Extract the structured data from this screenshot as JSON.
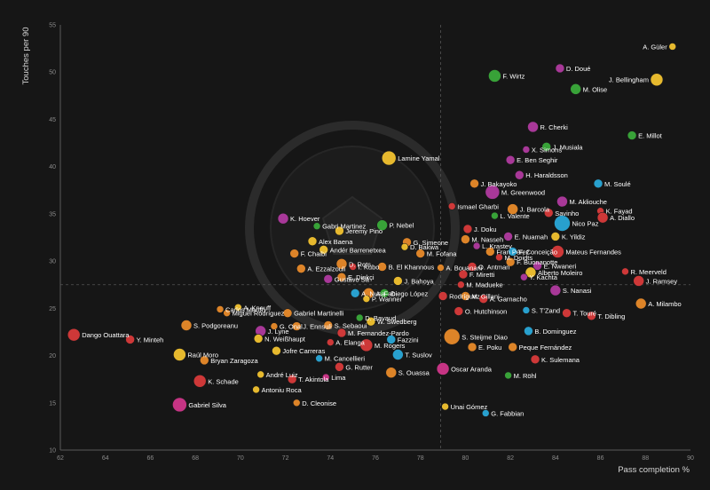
{
  "chart_data": {
    "type": "scatter",
    "title": "",
    "xlabel": "Pass completion %",
    "ylabel": "Touches per 90",
    "xlim": [
      62,
      90
    ],
    "ylim": [
      10,
      55
    ],
    "xticks": [
      62,
      64,
      66,
      68,
      70,
      72,
      74,
      76,
      78,
      80,
      82,
      84,
      86,
      88,
      90
    ],
    "yticks": [
      10,
      15,
      20,
      25,
      30,
      35,
      40,
      45,
      50,
      55
    ],
    "reference_lines": {
      "x": 78.9,
      "y": 27.5
    },
    "grid": false,
    "legend": "none",
    "points": [
      {
        "label": "A. Güler",
        "x": 89.2,
        "y": 52.7,
        "color": "#f2c230",
        "r": 4
      },
      {
        "label": "D. Doué",
        "x": 84.2,
        "y": 50.4,
        "color": "#b03aa0",
        "r": 5
      },
      {
        "label": "F. Wirtz",
        "x": 81.3,
        "y": 49.6,
        "color": "#3aaa3a",
        "r": 7
      },
      {
        "label": "J. Bellingham",
        "x": 88.5,
        "y": 49.2,
        "color": "#f2c230",
        "r": 7
      },
      {
        "label": "M. Olise",
        "x": 84.9,
        "y": 48.2,
        "color": "#3aaa3a",
        "r": 6
      },
      {
        "label": "R. Cherki",
        "x": 83.0,
        "y": 44.2,
        "color": "#b03aa0",
        "r": 6
      },
      {
        "label": "E. Millot",
        "x": 87.4,
        "y": 43.3,
        "color": "#3aaa3a",
        "r": 5
      },
      {
        "label": "J. Musiala",
        "x": 83.6,
        "y": 42.1,
        "color": "#3aaa3a",
        "r": 5
      },
      {
        "label": "X. Simons",
        "x": 82.7,
        "y": 41.8,
        "color": "#b03aa0",
        "r": 4
      },
      {
        "label": "E. Ben Seghir",
        "x": 82.0,
        "y": 40.7,
        "color": "#b03aa0",
        "r": 5
      },
      {
        "label": "Lamine Yamal",
        "x": 76.6,
        "y": 40.9,
        "color": "#f2c230",
        "r": 8
      },
      {
        "label": "H. Haraldsson",
        "x": 82.4,
        "y": 39.1,
        "color": "#b03aa0",
        "r": 5
      },
      {
        "label": "J. Bakayoko",
        "x": 80.4,
        "y": 38.2,
        "color": "#e88a2a",
        "r": 5
      },
      {
        "label": "M. Soulé",
        "x": 85.9,
        "y": 38.2,
        "color": "#2aa8d8",
        "r": 5
      },
      {
        "label": "M. Greenwood",
        "x": 81.2,
        "y": 37.3,
        "color": "#b03aa0",
        "r": 8
      },
      {
        "label": "M. Akliouche",
        "x": 84.3,
        "y": 36.3,
        "color": "#b03aa0",
        "r": 6
      },
      {
        "label": "Ismael Gharbi",
        "x": 79.4,
        "y": 35.8,
        "color": "#d83a3a",
        "r": 4
      },
      {
        "label": "J. Barcola",
        "x": 82.1,
        "y": 35.5,
        "color": "#e88a2a",
        "r": 6
      },
      {
        "label": "K. Fayad",
        "x": 86.0,
        "y": 35.3,
        "color": "#d83a3a",
        "r": 4
      },
      {
        "label": "Savinho",
        "x": 83.7,
        "y": 35.1,
        "color": "#d83a3a",
        "r": 5
      },
      {
        "label": "L. Valente",
        "x": 81.3,
        "y": 34.8,
        "color": "#3aaa3a",
        "r": 4
      },
      {
        "label": "A. Diallo",
        "x": 86.1,
        "y": 34.6,
        "color": "#d83a3a",
        "r": 6
      },
      {
        "label": "K. Hoever",
        "x": 71.9,
        "y": 34.5,
        "color": "#b03aa0",
        "r": 6
      },
      {
        "label": "Nico Paz",
        "x": 84.3,
        "y": 34.0,
        "color": "#2aa8d8",
        "r": 9
      },
      {
        "label": "Gabri Martinez",
        "x": 73.4,
        "y": 33.7,
        "color": "#3aaa3a",
        "r": 4
      },
      {
        "label": "P. Nebel",
        "x": 76.3,
        "y": 33.8,
        "color": "#3aaa3a",
        "r": 6
      },
      {
        "label": "J. Doku",
        "x": 80.1,
        "y": 33.4,
        "color": "#d83a3a",
        "r": 5
      },
      {
        "label": "Jeremy Pino",
        "x": 74.4,
        "y": 33.2,
        "color": "#f2c230",
        "r": 5
      },
      {
        "label": "E. Nuamah",
        "x": 81.9,
        "y": 32.6,
        "color": "#b03aa0",
        "r": 5
      },
      {
        "label": "K. Yildiz",
        "x": 84.0,
        "y": 32.6,
        "color": "#f2c230",
        "r": 5
      },
      {
        "label": "M. Nasseh",
        "x": 80.0,
        "y": 32.3,
        "color": "#e88a2a",
        "r": 5
      },
      {
        "label": "Alex Baena",
        "x": 73.2,
        "y": 32.1,
        "color": "#f2c230",
        "r": 5
      },
      {
        "label": "G. Simeone",
        "x": 77.4,
        "y": 32.0,
        "color": "#e88a2a",
        "r": 5
      },
      {
        "label": "D. Bakwa",
        "x": 77.3,
        "y": 31.5,
        "color": "#f2c230",
        "r": 4
      },
      {
        "label": "L. Krastev",
        "x": 80.5,
        "y": 31.6,
        "color": "#b03aa0",
        "r": 4
      },
      {
        "label": "Andér Barrenetxea",
        "x": 73.7,
        "y": 31.2,
        "color": "#f2c230",
        "r": 5
      },
      {
        "label": "Fran Pérez",
        "x": 81.1,
        "y": 31.0,
        "color": "#e88a2a",
        "r": 5
      },
      {
        "label": "F. Conceição",
        "x": 82.1,
        "y": 31.0,
        "color": "#2aa8d8",
        "r": 5
      },
      {
        "label": "Mateus Fernandes",
        "x": 84.1,
        "y": 31.0,
        "color": "#d83a3a",
        "r": 7
      },
      {
        "label": "F. Chaibi",
        "x": 72.4,
        "y": 30.8,
        "color": "#e88a2a",
        "r": 5
      },
      {
        "label": "M. Fofana",
        "x": 78.0,
        "y": 30.8,
        "color": "#e88a2a",
        "r": 5
      },
      {
        "label": "M. Doidts",
        "x": 81.5,
        "y": 30.4,
        "color": "#d83a3a",
        "r": 4
      },
      {
        "label": "F. Buonanotte",
        "x": 82.0,
        "y": 29.9,
        "color": "#e88a2a",
        "r": 5
      },
      {
        "label": "D. Rots",
        "x": 74.5,
        "y": 29.7,
        "color": "#e88a2a",
        "r": 6
      },
      {
        "label": "I. Kubo",
        "x": 75.0,
        "y": 29.4,
        "color": "#d83a3a",
        "r": 4
      },
      {
        "label": "B. El Khannous",
        "x": 76.3,
        "y": 29.4,
        "color": "#e88a2a",
        "r": 5
      },
      {
        "label": "A. Bouanani",
        "x": 78.9,
        "y": 29.3,
        "color": "#e88a2a",
        "r": 4
      },
      {
        "label": "O. Antman",
        "x": 80.3,
        "y": 29.4,
        "color": "#d83a3a",
        "r": 5
      },
      {
        "label": "E. Nwaneri",
        "x": 83.2,
        "y": 29.5,
        "color": "#b03aa0",
        "r": 5
      },
      {
        "label": "A. Ezzalzouli",
        "x": 72.7,
        "y": 29.2,
        "color": "#e88a2a",
        "r": 5
      },
      {
        "label": "Alberto Moleiro",
        "x": 82.9,
        "y": 28.8,
        "color": "#f2c230",
        "r": 6
      },
      {
        "label": "R. Meerveld",
        "x": 87.1,
        "y": 28.9,
        "color": "#d83a3a",
        "r": 4
      },
      {
        "label": "F. Miretti",
        "x": 79.9,
        "y": 28.6,
        "color": "#d83a3a",
        "r": 5
      },
      {
        "label": "Y. Kachta",
        "x": 82.6,
        "y": 28.3,
        "color": "#b03aa0",
        "r": 4
      },
      {
        "label": "E. Dinkçi",
        "x": 74.5,
        "y": 28.3,
        "color": "#e88a2a",
        "r": 5
      },
      {
        "label": "Gustavo Sá",
        "x": 73.9,
        "y": 28.1,
        "color": "#b03aa0",
        "r": 5
      },
      {
        "label": "J. Bahoya",
        "x": 77.0,
        "y": 27.9,
        "color": "#f2c230",
        "r": 5
      },
      {
        "label": "J. Ramsey",
        "x": 87.7,
        "y": 27.9,
        "color": "#d83a3a",
        "r": 6
      },
      {
        "label": "M. Madueke",
        "x": 79.8,
        "y": 27.5,
        "color": "#d83a3a",
        "r": 4
      },
      {
        "label": "S. Nanasi",
        "x": 84.0,
        "y": 26.9,
        "color": "#b03aa0",
        "r": 6
      },
      {
        "label": "A. Nusa",
        "x": 75.1,
        "y": 26.6,
        "color": "#2aa8d8",
        "r": 5
      },
      {
        "label": "A. Fabi",
        "x": 75.7,
        "y": 26.6,
        "color": "#e88a2a",
        "r": 6
      },
      {
        "label": "Diego López",
        "x": 76.4,
        "y": 26.6,
        "color": "#3aaa3a",
        "r": 5
      },
      {
        "label": "M. Gillani",
        "x": 80.0,
        "y": 26.3,
        "color": "#e88a2a",
        "r": 5
      },
      {
        "label": "Rodríguez",
        "x": 79.0,
        "y": 26.3,
        "color": "#d83a3a",
        "r": 5
      },
      {
        "label": "A. Garnacho",
        "x": 80.8,
        "y": 26.0,
        "color": "#d83a3a",
        "r": 5
      },
      {
        "label": "P. Wanner",
        "x": 75.6,
        "y": 26.0,
        "color": "#f2c230",
        "r": 4
      },
      {
        "label": "A. Milambo",
        "x": 87.8,
        "y": 25.5,
        "color": "#e88a2a",
        "r": 6
      },
      {
        "label": "A. Kneuff",
        "x": 69.9,
        "y": 25.1,
        "color": "#f2c230",
        "r": 4
      },
      {
        "label": "Carlos Martín",
        "x": 69.1,
        "y": 24.9,
        "color": "#e88a2a",
        "r": 4
      },
      {
        "label": "O. Hutchinson",
        "x": 79.7,
        "y": 24.7,
        "color": "#d83a3a",
        "r": 5
      },
      {
        "label": "S. T'Zand",
        "x": 82.7,
        "y": 24.8,
        "color": "#2aa8d8",
        "r": 4
      },
      {
        "label": "Miguel Rodríguez",
        "x": 69.4,
        "y": 24.5,
        "color": "#e88a2a",
        "r": 4
      },
      {
        "label": "Gabriel Martinelli",
        "x": 72.1,
        "y": 24.5,
        "color": "#e88a2a",
        "r": 5
      },
      {
        "label": "T. Touré",
        "x": 84.5,
        "y": 24.5,
        "color": "#d83a3a",
        "r": 5
      },
      {
        "label": "T. Dibling",
        "x": 85.6,
        "y": 24.2,
        "color": "#d83a3a",
        "r": 5
      },
      {
        "label": "D. Bavaud",
        "x": 75.3,
        "y": 24.0,
        "color": "#3aaa3a",
        "r": 4
      },
      {
        "label": "W. Swedberg",
        "x": 75.8,
        "y": 23.6,
        "color": "#f2c230",
        "r": 5
      },
      {
        "label": "S. Podgoreanu",
        "x": 67.6,
        "y": 23.2,
        "color": "#e88a2a",
        "r": 6
      },
      {
        "label": "J. Ennsuli",
        "x": 72.5,
        "y": 23.1,
        "color": "#e88a2a",
        "r": 5
      },
      {
        "label": "S. Sebaoui",
        "x": 73.9,
        "y": 23.2,
        "color": "#e88a2a",
        "r": 5
      },
      {
        "label": "G. Onal",
        "x": 71.5,
        "y": 23.1,
        "color": "#e88a2a",
        "r": 4
      },
      {
        "label": "J. Lyne",
        "x": 70.9,
        "y": 22.6,
        "color": "#b03aa0",
        "r": 6
      },
      {
        "label": "B. Dominguez",
        "x": 82.8,
        "y": 22.6,
        "color": "#2aa8d8",
        "r": 5
      },
      {
        "label": "M. Fernandez-Pardo",
        "x": 74.5,
        "y": 22.4,
        "color": "#d83a3a",
        "r": 5
      },
      {
        "label": "Dango Ouattara",
        "x": 62.6,
        "y": 22.2,
        "color": "#d83a3a",
        "r": 7
      },
      {
        "label": "S. Steijme Diao",
        "x": 79.4,
        "y": 22.0,
        "color": "#e88a2a",
        "r": 9
      },
      {
        "label": "Y. Minteh",
        "x": 65.1,
        "y": 21.7,
        "color": "#d83a3a",
        "r": 5
      },
      {
        "label": "N. Weißhaupt",
        "x": 70.8,
        "y": 21.8,
        "color": "#f2c230",
        "r": 5
      },
      {
        "label": "Fazzini",
        "x": 76.7,
        "y": 21.7,
        "color": "#2aa8d8",
        "r": 5
      },
      {
        "label": "A. Elanga",
        "x": 74.0,
        "y": 21.4,
        "color": "#d83a3a",
        "r": 4
      },
      {
        "label": "M. Rogers",
        "x": 75.6,
        "y": 21.1,
        "color": "#d83a3a",
        "r": 7
      },
      {
        "label": "E. Poku",
        "x": 80.3,
        "y": 20.9,
        "color": "#e88a2a",
        "r": 5
      },
      {
        "label": "Peque Fernández",
        "x": 82.1,
        "y": 20.9,
        "color": "#e88a2a",
        "r": 5
      },
      {
        "label": "Raúl Moro",
        "x": 67.3,
        "y": 20.1,
        "color": "#f2c230",
        "r": 7
      },
      {
        "label": "Jofre Carreras",
        "x": 71.6,
        "y": 20.5,
        "color": "#f2c230",
        "r": 5
      },
      {
        "label": "T. Suslov",
        "x": 77.0,
        "y": 20.1,
        "color": "#2aa8d8",
        "r": 6
      },
      {
        "label": "K. Sulemana",
        "x": 83.1,
        "y": 19.6,
        "color": "#d83a3a",
        "r": 5
      },
      {
        "label": "M. Cancellieri",
        "x": 73.5,
        "y": 19.7,
        "color": "#2aa8d8",
        "r": 4
      },
      {
        "label": "Bryan Zaragoza",
        "x": 68.4,
        "y": 19.5,
        "color": "#e88a2a",
        "r": 5
      },
      {
        "label": "G. Rutter",
        "x": 74.4,
        "y": 18.8,
        "color": "#d83a3a",
        "r": 5
      },
      {
        "label": "Oscar Aranda",
        "x": 79.0,
        "y": 18.6,
        "color": "#d0368a",
        "r": 7
      },
      {
        "label": "S. Ouassa",
        "x": 76.7,
        "y": 18.2,
        "color": "#e88a2a",
        "r": 6
      },
      {
        "label": "M. Röhl",
        "x": 81.9,
        "y": 17.9,
        "color": "#3aaa3a",
        "r": 4
      },
      {
        "label": "André Luiz",
        "x": 70.9,
        "y": 18.0,
        "color": "#f2c230",
        "r": 4
      },
      {
        "label": "Lima",
        "x": 73.8,
        "y": 17.7,
        "color": "#d0368a",
        "r": 4
      },
      {
        "label": "T. Akintola",
        "x": 72.3,
        "y": 17.5,
        "color": "#d83a3a",
        "r": 5
      },
      {
        "label": "K. Schade",
        "x": 68.2,
        "y": 17.3,
        "color": "#d83a3a",
        "r": 7
      },
      {
        "label": "Antoniu Roca",
        "x": 70.7,
        "y": 16.4,
        "color": "#f2c230",
        "r": 4
      },
      {
        "label": "Gabriel Silva",
        "x": 67.3,
        "y": 14.8,
        "color": "#d0368a",
        "r": 8
      },
      {
        "label": "D. Cleonise",
        "x": 72.5,
        "y": 15.0,
        "color": "#e88a2a",
        "r": 4
      },
      {
        "label": "Unai Gómez",
        "x": 79.1,
        "y": 14.6,
        "color": "#f2c230",
        "r": 4
      },
      {
        "label": "G. Fabbian",
        "x": 80.9,
        "y": 13.9,
        "color": "#2aa8d8",
        "r": 4
      }
    ]
  }
}
